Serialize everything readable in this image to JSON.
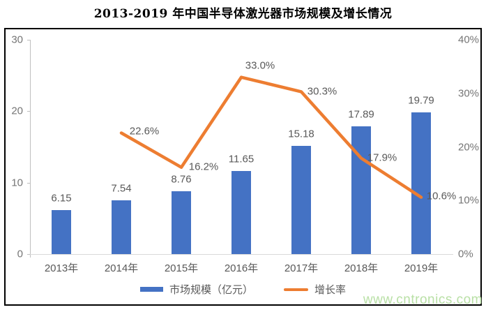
{
  "chart_data": {
    "type": "combo",
    "title": "2013-2019 年中国半导体激光器市场规模及增长情况",
    "categories": [
      "2013年",
      "2014年",
      "2015年",
      "2016年",
      "2017年",
      "2018年",
      "2019年"
    ],
    "series": [
      {
        "name": "市场规模（亿元）",
        "type": "bar",
        "axis": "left",
        "color": "#4472C4",
        "values": [
          6.15,
          7.54,
          8.76,
          11.65,
          15.18,
          17.89,
          19.79
        ],
        "labels": [
          "6.15",
          "7.54",
          "8.76",
          "11.65",
          "15.18",
          "17.89",
          "19.79"
        ]
      },
      {
        "name": "增长率",
        "type": "line",
        "axis": "right",
        "color": "#ED7D31",
        "values": [
          null,
          22.6,
          16.2,
          33.0,
          30.3,
          17.9,
          10.6
        ],
        "labels": [
          null,
          "22.6%",
          "16.2%",
          "33.0%",
          "30.3%",
          "17.9%",
          "10.6%"
        ]
      }
    ],
    "left_axis": {
      "min": 0,
      "max": 30,
      "ticks": [
        0,
        10,
        20,
        30
      ],
      "tick_labels": [
        "0",
        "10",
        "20",
        "30"
      ]
    },
    "right_axis": {
      "min": 0,
      "max": 40,
      "ticks": [
        0,
        10,
        20,
        30,
        40
      ],
      "tick_labels": [
        "0%",
        "10%",
        "20%",
        "30%",
        "40%"
      ]
    },
    "grid": "off",
    "legend_position": "bottom",
    "legend": [
      {
        "label": "市场规模（亿元）",
        "color": "#4472C4",
        "marker": "bar"
      },
      {
        "label": "增长率",
        "color": "#ED7D31",
        "marker": "line"
      }
    ],
    "watermark": "www.cntronics.com"
  }
}
